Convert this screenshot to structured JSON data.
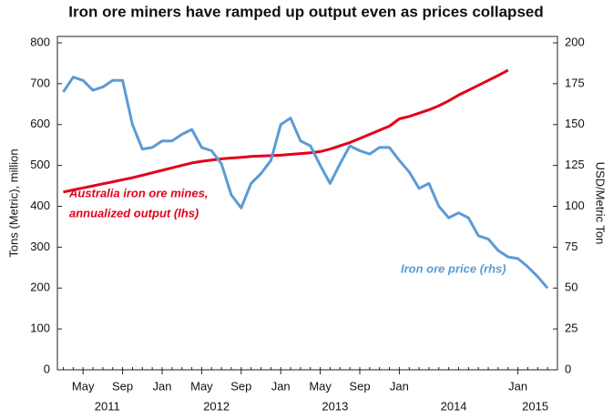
{
  "chart_data": {
    "type": "line",
    "title": "Iron ore miners have ramped up output even as prices collapsed",
    "y_label": "Tons (Metric), million",
    "y2_label": "USD/Metric Ton",
    "x": [
      "2011-03",
      "2011-04",
      "2011-05",
      "2011-06",
      "2011-07",
      "2011-08",
      "2011-09",
      "2011-10",
      "2011-11",
      "2011-12",
      "2012-01",
      "2012-02",
      "2012-03",
      "2012-04",
      "2012-05",
      "2012-06",
      "2012-07",
      "2012-08",
      "2012-09",
      "2012-10",
      "2012-11",
      "2012-12",
      "2013-01",
      "2013-02",
      "2013-03",
      "2013-04",
      "2013-05",
      "2013-06",
      "2013-07",
      "2013-08",
      "2013-09",
      "2013-10",
      "2013-11",
      "2013-12",
      "2014-01",
      "2014-02",
      "2014-03",
      "2014-04",
      "2014-05",
      "2014-06",
      "2014-07",
      "2014-08",
      "2014-09",
      "2014-10",
      "2014-11",
      "2014-12",
      "2015-01",
      "2015-02",
      "2015-03",
      "2015-04"
    ],
    "series": [
      {
        "name": "Australia iron ore mines, annualized output (lhs)",
        "color": "#e2001a",
        "axis": "y",
        "label_lines": [
          "Australia iron ore mines,",
          "annualized output (lhs)"
        ],
        "values": [
          435,
          440,
          445,
          450,
          455,
          460,
          465,
          470,
          476,
          482,
          488,
          494,
          500,
          506,
          510,
          513,
          516,
          518,
          520,
          522,
          523,
          524,
          525,
          527,
          529,
          531,
          534,
          540,
          548,
          556,
          566,
          576,
          586,
          596,
          614,
          620,
          628,
          636,
          646,
          658,
          672,
          684,
          696,
          708,
          720,
          733,
          null,
          null,
          null,
          null
        ]
      },
      {
        "name": "Iron ore price (rhs)",
        "color": "#5b9bd5",
        "axis": "y2",
        "values": [
          170,
          179,
          177,
          171,
          173,
          177,
          177,
          150,
          135,
          136,
          140,
          140,
          144,
          147,
          136,
          134,
          126,
          107,
          99,
          114,
          120,
          128,
          150,
          154,
          140,
          137,
          125,
          114,
          126,
          137,
          134,
          132,
          136,
          136,
          128,
          121,
          111,
          114,
          100,
          93,
          96,
          93,
          82,
          80,
          73,
          69,
          68,
          63,
          57,
          50
        ]
      }
    ],
    "ylim": [
      0,
      800
    ],
    "yticks": [
      0,
      100,
      200,
      300,
      400,
      500,
      600,
      700,
      800
    ],
    "y2lim": [
      0,
      200
    ],
    "y2ticks": [
      0,
      25,
      50,
      75,
      100,
      125,
      150,
      175,
      200
    ],
    "xticks": [
      {
        "value": "2011-05",
        "label": "May"
      },
      {
        "value": "2011-09",
        "label": "Sep"
      },
      {
        "value": "2012-01",
        "label": "Jan"
      },
      {
        "value": "2012-05",
        "label": "May"
      },
      {
        "value": "2012-09",
        "label": "Sep"
      },
      {
        "value": "2013-01",
        "label": "Jan"
      },
      {
        "value": "2013-05",
        "label": "May"
      },
      {
        "value": "2013-09",
        "label": "Sep"
      },
      {
        "value": "2014-01",
        "label": "Jan"
      },
      {
        "value": "2015-01",
        "label": "Jan"
      }
    ],
    "year_labels": [
      "2011",
      "2012",
      "2013",
      "2014",
      "2015"
    ]
  }
}
